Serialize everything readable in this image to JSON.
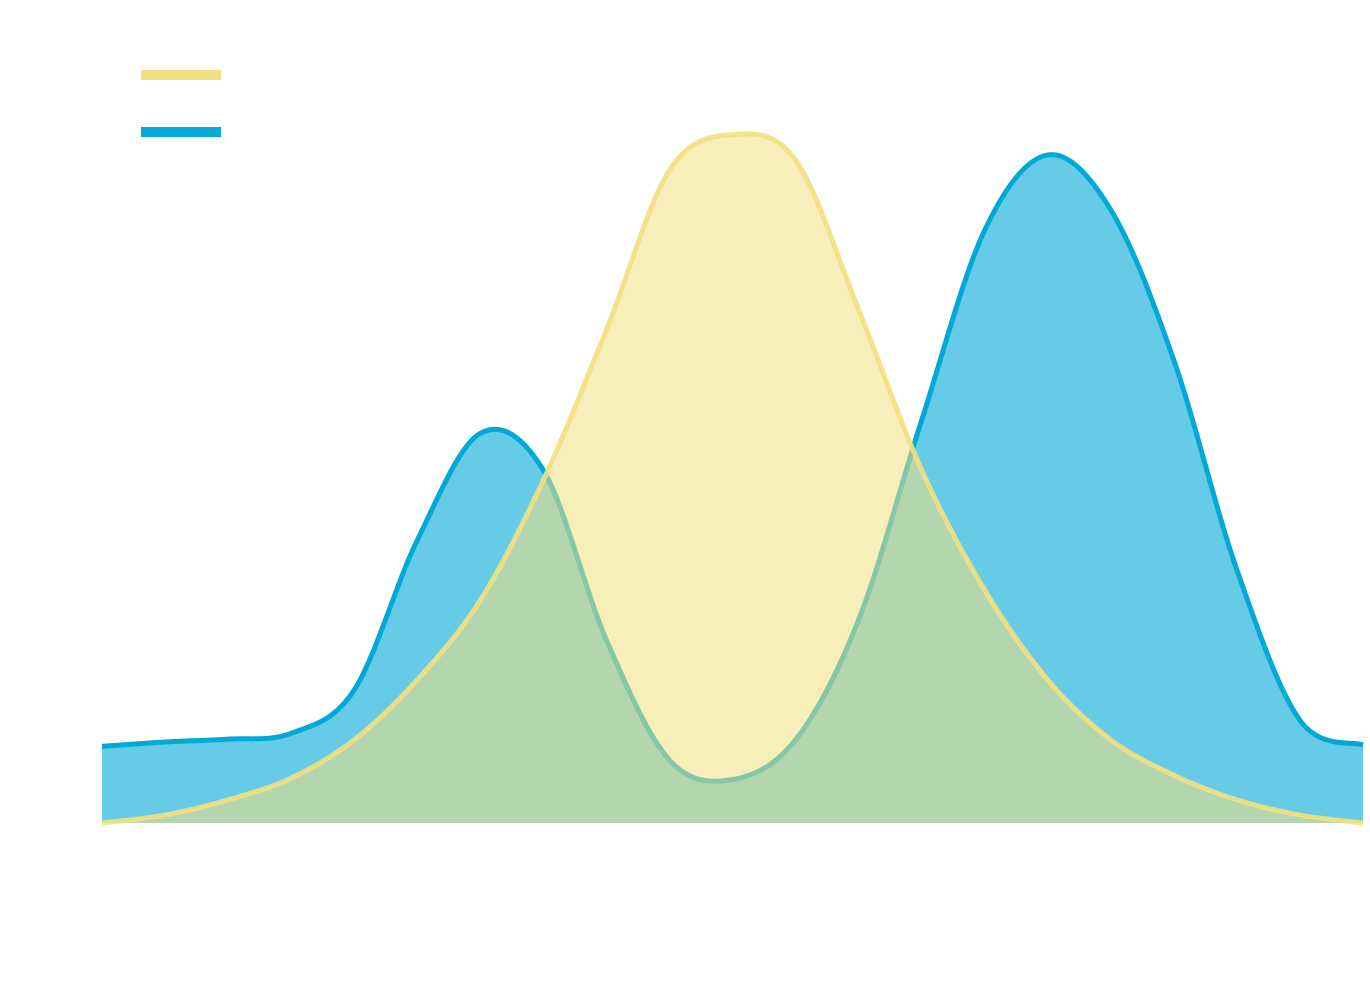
{
  "chart_data": {
    "type": "area",
    "x": [
      0,
      1,
      2,
      3,
      4,
      5,
      6,
      7,
      8,
      9,
      10,
      11,
      12,
      13,
      14,
      15,
      16,
      17,
      18,
      19,
      20
    ],
    "xlim": [
      0,
      20
    ],
    "ylim": [
      0,
      100
    ],
    "series": [
      {
        "color": "#f2e07f",
        "values": [
          0,
          1.1,
          3.2,
          6.2,
          11.5,
          19.8,
          30.8,
          47.4,
          68.2,
          90.3,
          95.2,
          91.7,
          71.0,
          48.8,
          32.2,
          19.8,
          11.5,
          6.6,
          3.2,
          1.1,
          0
        ]
      },
      {
        "color": "#00a9d6",
        "values": [
          10.6,
          11.2,
          11.6,
          12.4,
          18.4,
          39.1,
          53.9,
          48.8,
          25.3,
          8.7,
          6.0,
          11.5,
          28.1,
          55.7,
          82.0,
          92.4,
          84.8,
          64.0,
          35.0,
          14.2,
          10.8
        ]
      }
    ],
    "legend": "upper left"
  }
}
